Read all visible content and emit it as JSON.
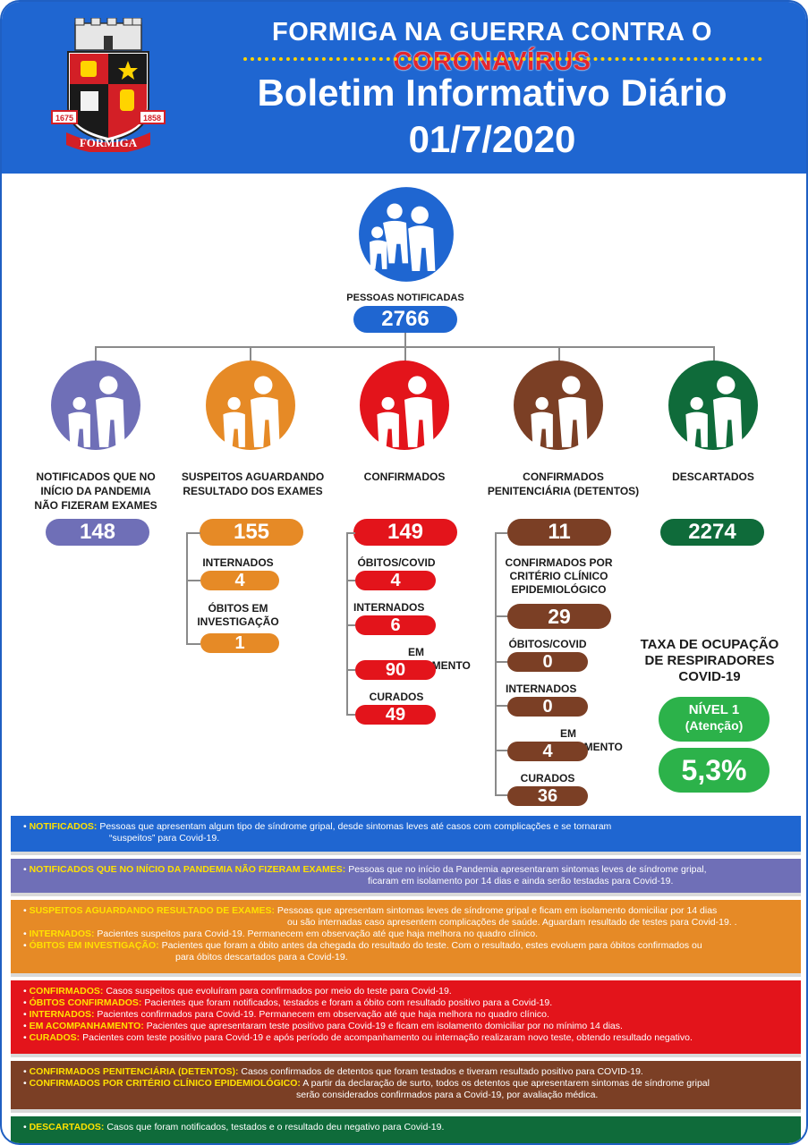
{
  "header": {
    "campaign_prefix": "FORMIGA NA GUERRA CONTRA O ",
    "campaign_highlight": "CORONAVÍRUS",
    "bulletin_title": "Boletim Informativo Diário",
    "bulletin_date": "01/7/2020",
    "crest": {
      "year_left": "1675",
      "year_right": "1858",
      "city": "FORMIGA"
    }
  },
  "colors": {
    "blue": "#1f66d1",
    "purple": "#6f6fb7",
    "orange": "#e68a26",
    "red": "#e3141b",
    "brown": "#7b3f25",
    "green": "#0f6b3a",
    "lightgreen": "#2cb24a"
  },
  "notificadas": {
    "label": "PESSOAS NOTIFICADAS",
    "value": "2766"
  },
  "columns": {
    "nao_exames": {
      "label": "NOTIFICADOS QUE NO INÍCIO DA PANDEMIA NÃO FIZERAM EXAMES",
      "value": "148"
    },
    "suspeitos": {
      "label": "SUSPEITOS AGUARDANDO RESULTADO DOS EXAMES",
      "value": "155",
      "sub": [
        {
          "label": "INTERNADOS",
          "value": "4"
        },
        {
          "label": "ÓBITOS EM INVESTIGAÇÃO",
          "value": "1"
        }
      ]
    },
    "confirmados": {
      "label": "CONFIRMADOS",
      "value": "149",
      "sub": [
        {
          "label": "ÓBITOS/COVID",
          "value": "4"
        },
        {
          "label": "INTERNADOS",
          "value": "6"
        },
        {
          "label": "EM ACOMPANHAMENTO",
          "value": "90"
        },
        {
          "label": "CURADOS",
          "value": "49"
        }
      ]
    },
    "penitenciaria": {
      "label": "CONFIRMADOS PENITENCIÁRIA (DETENTOS)",
      "value": "11",
      "sub": [
        {
          "label": "CONFIRMADOS POR CRITÉRIO CLÍNICO EPIDEMIOLÓGICO",
          "value": "29"
        },
        {
          "label": "ÓBITOS/COVID",
          "value": "0"
        },
        {
          "label": "INTERNADOS",
          "value": "0"
        },
        {
          "label": "EM ACOMPANHAMENTO",
          "value": "4"
        },
        {
          "label": "CURADOS",
          "value": "36"
        }
      ]
    },
    "descartados": {
      "label": "DESCARTADOS",
      "value": "2274"
    }
  },
  "respiradores": {
    "title": "TAXA DE OCUPAÇÃO DE RESPIRADORES COVID-19",
    "nivel": "NÍVEL 1",
    "nivel_desc": "(Atenção)",
    "taxa": "5,3%"
  },
  "legend": {
    "notificados": {
      "term": "NOTIFICADOS:",
      "text1": " Pessoas que apresentam algum tipo de síndrome gripal, desde sintomas leves até casos com complicações e se tornaram",
      "text2": "“suspeitos” para Covid-19."
    },
    "nao_exames": {
      "term": "NOTIFICADOS QUE NO INÍCIO DA PANDEMIA NÃO FIZERAM EXAMES:",
      "text1": " Pessoas que no início da Pandemia apresentaram sintomas leves de síndrome gripal,",
      "text2": "ficaram em isolamento por 14 dias e ainda serão testadas para Covid-19."
    },
    "suspeitos": [
      {
        "term": "SUSPEITOS AGUARDANDO RESULTADO DE EXAMES:",
        "text1": " Pessoas que apresentam sintomas leves de síndrome gripal e ficam em isolamento domiciliar por 14 dias",
        "text2": "ou são internadas caso apresentem complicações de saúde. Aguardam resultado de testes para Covid-19. ."
      },
      {
        "term": "INTERNADOS:",
        "text1": " Pacientes suspeitos para Covid-19. Permanecem em observação até que haja melhora no quadro clínico."
      },
      {
        "term": "ÓBITOS EM INVESTIGAÇÃO:",
        "text1": " Pacientes que foram a óbito antes da chegada do resultado do teste. Com o resultado, estes evoluem para óbitos confirmados ou",
        "text2": "para óbitos descartados para a Covid-19."
      }
    ],
    "confirmados": [
      {
        "term": "CONFIRMADOS:",
        "text1": " Casos suspeitos que evoluíram para confirmados por meio do teste para Covid-19."
      },
      {
        "term": "ÓBITOS CONFIRMADOS:",
        "text1": " Pacientes que foram notificados, testados e foram a óbito com resultado positivo para a Covid-19."
      },
      {
        "term": "INTERNADOS:",
        "text1": " Pacientes confirmados para Covid-19. Permanecem em observação até que haja melhora no quadro clínico."
      },
      {
        "term": "EM ACOMPANHAMENTO:",
        "text1": " Pacientes que apresentaram teste positivo para Covid-19 e ficam em isolamento domiciliar por no mínimo 14 dias."
      },
      {
        "term": "CURADOS:",
        "text1": " Pacientes com teste positivo para Covid-19 e após período de acompanhamento ou internação realizaram novo teste, obtendo resultado negativo."
      }
    ],
    "penitenciaria": [
      {
        "term": "CONFIRMADOS PENITENCIÁRIA (DETENTOS):",
        "text1": " Casos confirmados de detentos que foram testados e tiveram resultado positivo para COVID-19."
      },
      {
        "term": "CONFIRMADOS POR CRITÉRIO CLÍNICO EPIDEMIOLÓGICO:",
        "text1": " A partir da declaração de surto, todos os detentos que apresentarem sintomas de síndrome gripal",
        "text2": "serão considerados confirmados para a Covid-19, por avaliação médica."
      }
    ],
    "descartados": {
      "term": "DESCARTADOS:",
      "text1": " Casos que foram notificados, testados e o resultado deu negativo para Covid-19."
    }
  }
}
